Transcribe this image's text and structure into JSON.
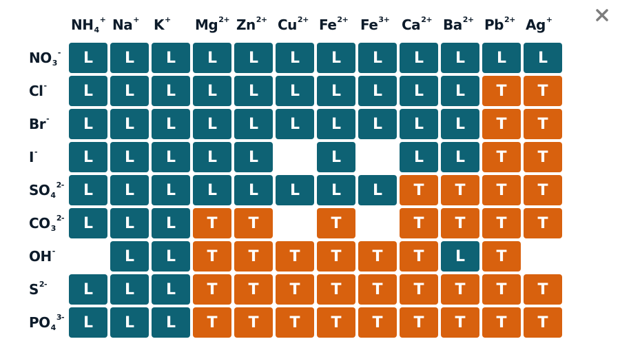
{
  "close_icon": "close-icon",
  "colors": {
    "L": "#0e6274",
    "T": "#d8610e",
    "text": "#0d1b2a",
    "close": "#7d7d7d"
  },
  "columns": [
    {
      "symbol": "NH",
      "sub": "4",
      "sup": "+"
    },
    {
      "symbol": "Na",
      "sub": "",
      "sup": "+"
    },
    {
      "symbol": "K",
      "sub": "",
      "sup": "+"
    },
    {
      "symbol": "Mg",
      "sub": "",
      "sup": "2+"
    },
    {
      "symbol": "Zn",
      "sub": "",
      "sup": "2+"
    },
    {
      "symbol": "Cu",
      "sub": "",
      "sup": "2+"
    },
    {
      "symbol": "Fe",
      "sub": "",
      "sup": "2+"
    },
    {
      "symbol": "Fe",
      "sub": "",
      "sup": "3+"
    },
    {
      "symbol": "Ca",
      "sub": "",
      "sup": "2+"
    },
    {
      "symbol": "Ba",
      "sub": "",
      "sup": "2+"
    },
    {
      "symbol": "Pb",
      "sub": "",
      "sup": "2+"
    },
    {
      "symbol": "Ag",
      "sub": "",
      "sup": "+"
    }
  ],
  "rows": [
    {
      "symbol": "NO",
      "sub": "3",
      "sup": "-",
      "cells": [
        "L",
        "L",
        "L",
        "L",
        "L",
        "L",
        "L",
        "L",
        "L",
        "L",
        "L",
        "L"
      ]
    },
    {
      "symbol": "Cl",
      "sub": "",
      "sup": "-",
      "cells": [
        "L",
        "L",
        "L",
        "L",
        "L",
        "L",
        "L",
        "L",
        "L",
        "L",
        "T",
        "T"
      ]
    },
    {
      "symbol": "Br",
      "sub": "",
      "sup": "-",
      "cells": [
        "L",
        "L",
        "L",
        "L",
        "L",
        "L",
        "L",
        "L",
        "L",
        "L",
        "T",
        "T"
      ]
    },
    {
      "symbol": "I",
      "sub": "",
      "sup": "-",
      "cells": [
        "L",
        "L",
        "L",
        "L",
        "L",
        "",
        "L",
        "",
        "L",
        "L",
        "T",
        "T"
      ]
    },
    {
      "symbol": "SO",
      "sub": "4",
      "sup": "2-",
      "cells": [
        "L",
        "L",
        "L",
        "L",
        "L",
        "L",
        "L",
        "L",
        "T",
        "T",
        "T",
        "T"
      ]
    },
    {
      "symbol": "CO",
      "sub": "3",
      "sup": "2-",
      "cells": [
        "L",
        "L",
        "L",
        "T",
        "T",
        "",
        "T",
        "",
        "T",
        "T",
        "T",
        "T"
      ]
    },
    {
      "symbol": "OH",
      "sub": "",
      "sup": "-",
      "cells": [
        "",
        "L",
        "L",
        "T",
        "T",
        "T",
        "T",
        "T",
        "T",
        "L",
        "T",
        ""
      ]
    },
    {
      "symbol": "S",
      "sub": "",
      "sup": "2-",
      "cells": [
        "L",
        "L",
        "L",
        "T",
        "T",
        "T",
        "T",
        "T",
        "T",
        "T",
        "T",
        "T"
      ]
    },
    {
      "symbol": "PO",
      "sub": "4",
      "sup": "3-",
      "cells": [
        "L",
        "L",
        "L",
        "T",
        "T",
        "T",
        "T",
        "T",
        "T",
        "T",
        "T",
        "T"
      ]
    }
  ]
}
